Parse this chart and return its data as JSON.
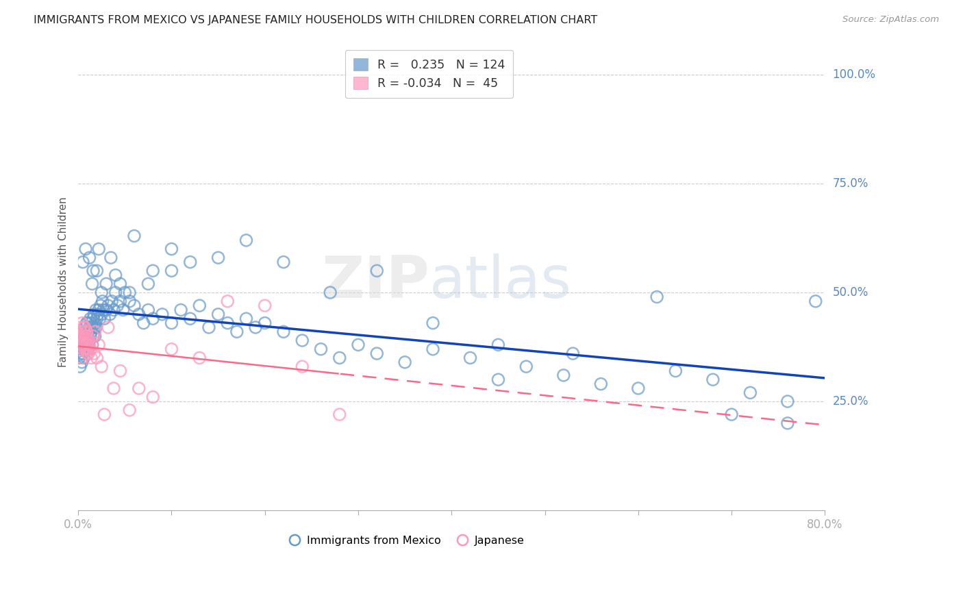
{
  "title": "IMMIGRANTS FROM MEXICO VS JAPANESE FAMILY HOUSEHOLDS WITH CHILDREN CORRELATION CHART",
  "source": "Source: ZipAtlas.com",
  "ylabel": "Family Households with Children",
  "right_yticks": [
    "100.0%",
    "75.0%",
    "50.0%",
    "25.0%"
  ],
  "right_ytick_vals": [
    1.0,
    0.75,
    0.5,
    0.25
  ],
  "legend_blue_r": "0.235",
  "legend_blue_n": "124",
  "legend_pink_r": "-0.034",
  "legend_pink_n": "45",
  "legend_blue_label": "Immigrants from Mexico",
  "legend_pink_label": "Japanese",
  "blue_color": "#6699CC",
  "pink_color": "#FF99BB",
  "trendline_blue": "#1144BB",
  "trendline_pink": "#FF6688",
  "background_color": "#FFFFFF",
  "xlim": [
    0.0,
    0.8
  ],
  "ylim": [
    0.0,
    1.05
  ],
  "figsize": [
    14.06,
    8.92
  ],
  "dpi": 100,
  "blue_x": [
    0.001,
    0.002,
    0.003,
    0.003,
    0.004,
    0.004,
    0.005,
    0.005,
    0.006,
    0.006,
    0.007,
    0.007,
    0.007,
    0.008,
    0.008,
    0.009,
    0.009,
    0.01,
    0.01,
    0.01,
    0.011,
    0.011,
    0.012,
    0.012,
    0.013,
    0.013,
    0.014,
    0.014,
    0.015,
    0.015,
    0.016,
    0.016,
    0.017,
    0.017,
    0.018,
    0.018,
    0.019,
    0.019,
    0.02,
    0.021,
    0.022,
    0.023,
    0.024,
    0.025,
    0.026,
    0.027,
    0.028,
    0.03,
    0.032,
    0.034,
    0.036,
    0.038,
    0.04,
    0.042,
    0.045,
    0.048,
    0.05,
    0.055,
    0.06,
    0.065,
    0.07,
    0.075,
    0.08,
    0.09,
    0.1,
    0.11,
    0.12,
    0.13,
    0.14,
    0.15,
    0.16,
    0.17,
    0.18,
    0.19,
    0.2,
    0.22,
    0.24,
    0.26,
    0.28,
    0.3,
    0.32,
    0.35,
    0.38,
    0.42,
    0.45,
    0.48,
    0.52,
    0.56,
    0.6,
    0.64,
    0.68,
    0.72,
    0.76,
    0.79,
    0.015,
    0.02,
    0.025,
    0.035,
    0.045,
    0.06,
    0.08,
    0.1,
    0.12,
    0.15,
    0.18,
    0.22,
    0.27,
    0.32,
    0.38,
    0.45,
    0.53,
    0.62,
    0.7,
    0.76,
    0.005,
    0.008,
    0.012,
    0.016,
    0.022,
    0.03,
    0.04,
    0.055,
    0.075,
    0.1
  ],
  "blue_y": [
    0.35,
    0.33,
    0.36,
    0.38,
    0.34,
    0.37,
    0.36,
    0.39,
    0.35,
    0.38,
    0.37,
    0.4,
    0.42,
    0.38,
    0.41,
    0.39,
    0.43,
    0.37,
    0.4,
    0.43,
    0.38,
    0.41,
    0.39,
    0.42,
    0.4,
    0.44,
    0.41,
    0.43,
    0.38,
    0.42,
    0.4,
    0.44,
    0.42,
    0.45,
    0.4,
    0.43,
    0.42,
    0.46,
    0.44,
    0.45,
    0.46,
    0.44,
    0.47,
    0.45,
    0.48,
    0.46,
    0.44,
    0.46,
    0.47,
    0.45,
    0.48,
    0.46,
    0.5,
    0.47,
    0.48,
    0.46,
    0.5,
    0.48,
    0.47,
    0.45,
    0.43,
    0.46,
    0.44,
    0.45,
    0.43,
    0.46,
    0.44,
    0.47,
    0.42,
    0.45,
    0.43,
    0.41,
    0.44,
    0.42,
    0.43,
    0.41,
    0.39,
    0.37,
    0.35,
    0.38,
    0.36,
    0.34,
    0.37,
    0.35,
    0.3,
    0.33,
    0.31,
    0.29,
    0.28,
    0.32,
    0.3,
    0.27,
    0.25,
    0.48,
    0.52,
    0.55,
    0.5,
    0.58,
    0.52,
    0.63,
    0.55,
    0.6,
    0.57,
    0.58,
    0.62,
    0.57,
    0.5,
    0.55,
    0.43,
    0.38,
    0.36,
    0.49,
    0.22,
    0.2,
    0.57,
    0.6,
    0.58,
    0.55,
    0.6,
    0.52,
    0.54,
    0.5,
    0.52,
    0.55
  ],
  "pink_x": [
    0.001,
    0.002,
    0.003,
    0.003,
    0.004,
    0.004,
    0.005,
    0.005,
    0.006,
    0.006,
    0.007,
    0.007,
    0.008,
    0.008,
    0.009,
    0.009,
    0.01,
    0.01,
    0.011,
    0.012,
    0.013,
    0.014,
    0.015,
    0.016,
    0.017,
    0.018,
    0.02,
    0.022,
    0.025,
    0.028,
    0.032,
    0.038,
    0.045,
    0.055,
    0.065,
    0.08,
    0.1,
    0.13,
    0.16,
    0.2,
    0.24,
    0.28,
    0.004,
    0.006,
    0.01
  ],
  "pink_y": [
    0.4,
    0.42,
    0.38,
    0.41,
    0.39,
    0.43,
    0.37,
    0.4,
    0.38,
    0.41,
    0.39,
    0.42,
    0.37,
    0.4,
    0.38,
    0.41,
    0.37,
    0.4,
    0.36,
    0.38,
    0.37,
    0.35,
    0.38,
    0.4,
    0.36,
    0.41,
    0.35,
    0.38,
    0.33,
    0.22,
    0.42,
    0.28,
    0.32,
    0.23,
    0.28,
    0.26,
    0.37,
    0.35,
    0.48,
    0.47,
    0.33,
    0.22,
    0.35,
    0.42,
    0.36
  ]
}
